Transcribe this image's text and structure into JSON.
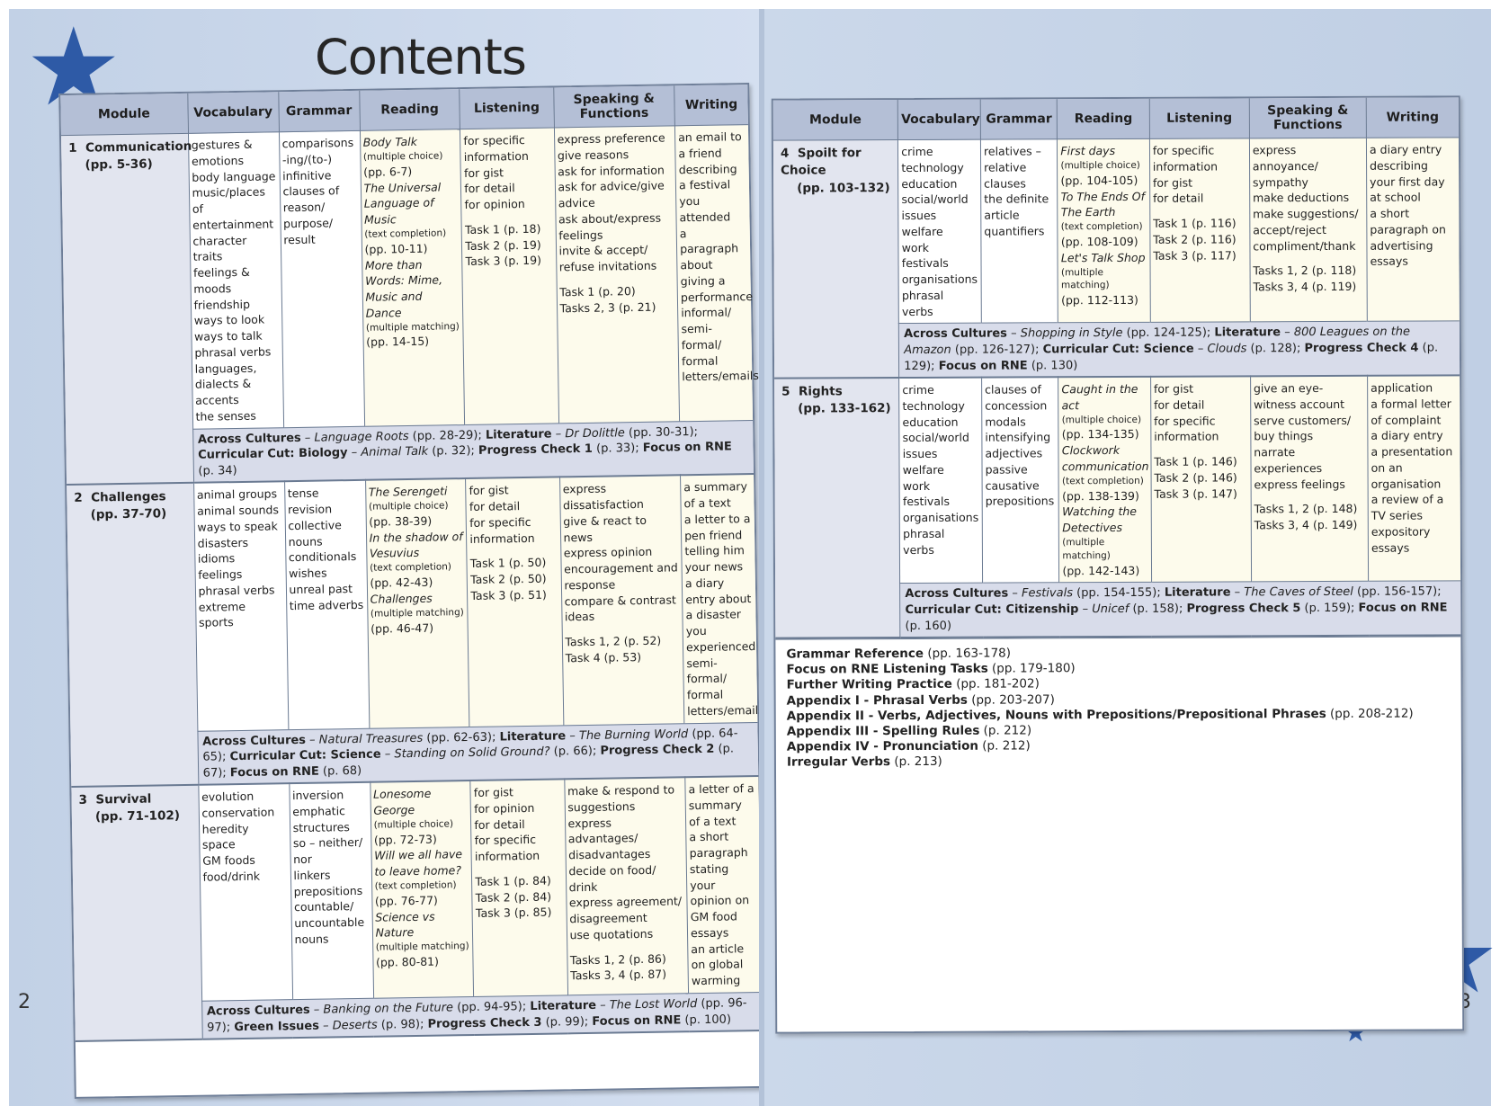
{
  "title": "Contents",
  "page_numbers": {
    "left": "2",
    "right": "3"
  },
  "columns": [
    "Module",
    "Vocabulary",
    "Grammar",
    "Reading",
    "Listening",
    "Speaking & Functions",
    "Writing"
  ],
  "modules": [
    {
      "num": "1",
      "name": "Communication",
      "pages": "(pp. 5-36)",
      "vocabulary": [
        "gestures & emotions",
        "body language",
        "music/places of entertainment",
        "character traits",
        "feelings & moods",
        "friendship",
        "ways to look",
        "ways to talk",
        "phrasal verbs",
        "languages, dialects & accents",
        "the senses"
      ],
      "grammar": [
        "comparisons",
        "-ing/(to-) infinitive",
        "clauses of reason/ purpose/ result"
      ],
      "reading": [
        {
          "title": "Body Talk",
          "note": "(multiple choice)",
          "pages": "(pp. 6-7)"
        },
        {
          "title": "The Universal Language of Music",
          "note": "(text completion)",
          "pages": "(pp. 10-11)"
        },
        {
          "title": "More than Words: Mime, Music and Dance",
          "note": "(multiple matching)",
          "pages": "(pp. 14-15)"
        }
      ],
      "listening": [
        "for specific information",
        "for gist",
        "for detail",
        "for opinion"
      ],
      "listening_tasks": [
        "Task 1 (p. 18)",
        "Task 2 (p. 19)",
        "Task 3 (p. 19)"
      ],
      "speaking": [
        "express preference",
        "give reasons",
        "ask for information",
        "ask for advice/give advice",
        "ask about/express feelings",
        "invite & accept/ refuse invitations"
      ],
      "speaking_tasks": [
        "Task 1 (p. 20)",
        "Tasks 2, 3 (p. 21)"
      ],
      "writing": [
        "an email to a friend describing a festival you attended",
        "a paragraph about giving a performance",
        "informal/ semi- formal/ formal letters/emails"
      ],
      "band": {
        "across_label": "Across Cultures",
        "across_title": "Language Roots",
        "across_pages": "(pp. 28-29);",
        "lit_label": "Literature",
        "lit_title": "Dr Dolittle",
        "lit_pages": "(pp. 30-31);",
        "cc_label": "Curricular Cut: Biology",
        "cc_title": "Animal Talk",
        "cc_pages": "(p. 32);",
        "pc_label": "Progress Check 1",
        "pc_pages": "(p. 33);",
        "rne_label": "Focus on RNE",
        "rne_pages": "(p. 34)"
      }
    },
    {
      "num": "2",
      "name": "Challenges",
      "pages": "(pp. 37-70)",
      "vocabulary": [
        "animal groups",
        "animal sounds",
        "ways to speak",
        "disasters",
        "idioms",
        "feelings",
        "phrasal verbs",
        "extreme sports"
      ],
      "grammar": [
        "tense revision",
        "collective nouns",
        "conditionals",
        "wishes",
        "unreal past",
        "time adverbs"
      ],
      "reading": [
        {
          "title": "The Serengeti",
          "note": "(multiple choice)",
          "pages": "(pp. 38-39)"
        },
        {
          "title": "In the shadow of Vesuvius",
          "note": "(text completion)",
          "pages": "(pp. 42-43)"
        },
        {
          "title": "Challenges",
          "note": "(multiple matching)",
          "pages": "(pp. 46-47)"
        }
      ],
      "listening": [
        "for gist",
        "for detail",
        "for specific information"
      ],
      "listening_tasks": [
        "Task 1 (p. 50)",
        "Task 2 (p. 50)",
        "Task 3 (p. 51)"
      ],
      "speaking": [
        "express dissatisfaction",
        "give & react to news",
        "express opinion",
        "encouragement and response",
        "compare & contrast ideas"
      ],
      "speaking_tasks": [
        "Tasks 1, 2 (p. 52)",
        "Task 4 (p. 53)"
      ],
      "writing": [
        "a summary of a text",
        "a letter to a pen friend telling him your news",
        "a diary entry about a disaster you experienced",
        "semi-formal/ formal letters/emails"
      ],
      "band": {
        "across_label": "Across Cultures",
        "across_title": "Natural Treasures",
        "across_pages": "(pp. 62-63);",
        "lit_label": "Literature",
        "lit_title": "The Burning World",
        "lit_pages": "(pp. 64-65);",
        "cc_label": "Curricular Cut: Science",
        "cc_title": "Standing on Solid Ground?",
        "cc_pages": "(p. 66);",
        "pc_label": "Progress Check 2",
        "pc_pages": "(p. 67);",
        "rne_label": "Focus on RNE",
        "rne_pages": "(p. 68)"
      }
    },
    {
      "num": "3",
      "name": "Survival",
      "pages": "(pp. 71-102)",
      "vocabulary": [
        "evolution",
        "conservation",
        "heredity",
        "space",
        "GM foods",
        "food/drink"
      ],
      "grammar": [
        "inversion",
        "emphatic structures",
        "so – neither/ nor",
        "linkers",
        "prepositions",
        "countable/ uncountable nouns"
      ],
      "reading": [
        {
          "title": "Lonesome George",
          "note": "(multiple choice)",
          "pages": "(pp. 72-73)"
        },
        {
          "title": "Will we all have to leave home?",
          "note": "(text completion)",
          "pages": "(pp. 76-77)"
        },
        {
          "title": "Science vs Nature",
          "note": "(multiple matching)",
          "pages": "(pp. 80-81)"
        }
      ],
      "listening": [
        "for gist",
        "for opinion",
        "for detail",
        "for specific information"
      ],
      "listening_tasks": [
        "Task 1 (p. 84)",
        "Task 2 (p. 84)",
        "Task 3 (p. 85)"
      ],
      "speaking": [
        "make & respond to suggestions",
        "express advantages/ disadvantages",
        "decide on food/ drink",
        "express agreement/ disagreement",
        "use quotations"
      ],
      "speaking_tasks": [
        "Tasks 1, 2 (p. 86)",
        "Tasks 3, 4 (p. 87)"
      ],
      "writing": [
        "a letter of a summary of a text",
        "a short paragraph stating your opinion on GM food",
        "essays",
        "an article on global warming"
      ],
      "band": {
        "across_label": "Across Cultures",
        "across_title": "Banking on the Future",
        "across_pages": "(pp. 94-95);",
        "lit_label": "Literature",
        "lit_title": "The Lost World",
        "lit_pages": "(pp. 96-97);",
        "cc_label": "Green Issues",
        "cc_title": "Deserts",
        "cc_pages": "(p. 98);",
        "pc_label": "Progress Check 3",
        "pc_pages": "(p. 99);",
        "rne_label": "Focus on RNE",
        "rne_pages": "(p. 100)"
      }
    },
    {
      "num": "4",
      "name": "Spoilt for Choice",
      "pages": "(pp. 103-132)",
      "vocabulary": [
        "crime",
        "technology",
        "education",
        "social/world issues",
        "welfare",
        "work",
        "festivals",
        "organisations",
        "phrasal verbs"
      ],
      "grammar": [
        "relatives – relative clauses",
        "the definite article",
        "quantifiers"
      ],
      "reading": [
        {
          "title": "First days",
          "note": "(multiple choice)",
          "pages": "(pp. 104-105)"
        },
        {
          "title": "To The Ends Of The Earth",
          "note": "(text completion)",
          "pages": "(pp. 108-109)"
        },
        {
          "title": "Let's Talk Shop",
          "note": "(multiple matching)",
          "pages": "(pp. 112-113)"
        }
      ],
      "listening": [
        "for specific information",
        "for gist",
        "for detail"
      ],
      "listening_tasks": [
        "Task 1 (p. 116)",
        "Task 2 (p. 116)",
        "Task 3 (p. 117)"
      ],
      "speaking": [
        "express annoyance/ sympathy",
        "make deductions",
        "make suggestions/ accept/reject",
        "compliment/thank"
      ],
      "speaking_tasks": [
        "Tasks 1, 2 (p. 118)",
        "Tasks 3, 4 (p. 119)"
      ],
      "writing": [
        "a diary entry describing your first day at school",
        "a short paragraph on advertising",
        "essays"
      ],
      "band": {
        "across_label": "Across Cultures",
        "across_title": "Shopping in Style",
        "across_pages": "(pp. 124-125);",
        "lit_label": "Literature",
        "lit_title": "800 Leagues on the Amazon",
        "lit_pages": "(pp. 126-127);",
        "cc_label": "Curricular Cut: Science",
        "cc_title": "Clouds",
        "cc_pages": "(p. 128);",
        "pc_label": "Progress Check 4",
        "pc_pages": "(p. 129);",
        "rne_label": "Focus on RNE",
        "rne_pages": "(p. 130)"
      }
    },
    {
      "num": "5",
      "name": "Rights",
      "pages": "(pp. 133-162)",
      "vocabulary": [
        "crime",
        "technology",
        "education",
        "social/world issues",
        "welfare",
        "work",
        "festivals",
        "organisations",
        "phrasal verbs"
      ],
      "grammar": [
        "clauses of concession",
        "modals",
        "intensifying adjectives",
        "passive",
        "causative",
        "prepositions"
      ],
      "reading": [
        {
          "title": "Caught in the act",
          "note": "(multiple choice)",
          "pages": "(pp. 134-135)"
        },
        {
          "title": "Clockwork communication",
          "note": "(text completion)",
          "pages": "(pp. 138-139)"
        },
        {
          "title": "Watching the Detectives",
          "note": "(multiple matching)",
          "pages": "(pp. 142-143)"
        }
      ],
      "listening": [
        "for gist",
        "for detail",
        "for specific information"
      ],
      "listening_tasks": [
        "Task 1 (p. 146)",
        "Task 2 (p. 146)",
        "Task 3 (p. 147)"
      ],
      "speaking": [
        "give an eye-witness account",
        "serve customers/ buy things",
        "narrate experiences",
        "express feelings"
      ],
      "speaking_tasks": [
        "Tasks 1, 2 (p. 148)",
        "Tasks 3, 4 (p. 149)"
      ],
      "writing": [
        "application",
        "a formal letter of complaint",
        "a diary entry",
        "a presentation on an organisation",
        "a review of a TV series",
        "expository essays"
      ],
      "band": {
        "across_label": "Across Cultures",
        "across_title": "Festivals",
        "across_pages": "(pp. 154-155);",
        "lit_label": "Literature",
        "lit_title": "The Caves of Steel",
        "lit_pages": "(pp. 156-157);",
        "cc_label": "Curricular Cut: Citizenship",
        "cc_title": "Unicef",
        "cc_pages": "(p. 158);",
        "pc_label": "Progress Check 5",
        "pc_pages": "(p. 159);",
        "rne_label": "Focus on RNE",
        "rne_pages": "(p. 160)"
      }
    }
  ],
  "appendices": [
    {
      "label": "Grammar Reference",
      "pages": "(pp. 163-178)"
    },
    {
      "label": "Focus on RNE Listening Tasks",
      "pages": "(pp. 179-180)"
    },
    {
      "label": "Further Writing Practice",
      "pages": "(pp. 181-202)"
    },
    {
      "label": "Appendix I - Phrasal Verbs",
      "pages": "(pp. 203-207)"
    },
    {
      "label": "Appendix II - Verbs, Adjectives, Nouns with Prepositions/Prepositional Phrases",
      "pages": "(pp. 208-212)"
    },
    {
      "label": "Appendix III - Spelling Rules",
      "pages": "(p. 212)"
    },
    {
      "label": "Appendix IV - Pronunciation",
      "pages": "(p. 212)"
    },
    {
      "label": "Irregular Verbs",
      "pages": "(p. 213)"
    }
  ]
}
